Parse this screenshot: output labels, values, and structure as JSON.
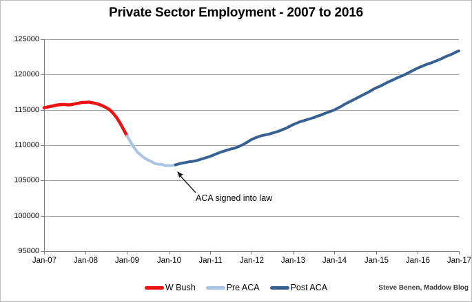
{
  "window": {
    "background": "#ffffff",
    "border_color": "#bdbdbd"
  },
  "chart_data": {
    "type": "line",
    "title": "Private Sector Employment - 2007 to 2016",
    "credit": "Steve Benen, Maddow Blog",
    "annotation": {
      "text": "ACA signed into law",
      "points_to": "Mar-10 trough of the curve"
    },
    "x_axis": {
      "tick_labels": [
        "Jan-07",
        "Jan-08",
        "Jan-09",
        "Jan-10",
        "Jan-11",
        "Jan-12",
        "Jan-13",
        "Jan-14",
        "Jan-15",
        "Jan-16",
        "Jan-17"
      ],
      "months_per_tick": 12,
      "total_months": 120
    },
    "y_axis": {
      "tick_labels": [
        "95000",
        "100000",
        "105000",
        "110000",
        "115000",
        "120000",
        "125000"
      ],
      "min": 95000,
      "max": 125000,
      "grid": true
    },
    "colors": {
      "grid": "#a3a3a3",
      "axis": "#808080",
      "arrow": "#1a1a1a",
      "text": "#000000"
    },
    "legend_position": "bottom",
    "series": [
      {
        "name": "W Bush",
        "color": "#ee1111",
        "start_month": 0,
        "values": [
          115300,
          115400,
          115500,
          115600,
          115700,
          115750,
          115750,
          115700,
          115750,
          115850,
          115950,
          116050,
          116050,
          116100,
          116000,
          115900,
          115750,
          115550,
          115300,
          115000,
          114500,
          113900,
          113100,
          112200,
          111300
        ]
      },
      {
        "name": "Pre ACA",
        "color": "#a9c4e2",
        "start_month": 24,
        "values": [
          111300,
          110500,
          109700,
          109000,
          108600,
          108200,
          107900,
          107700,
          107400,
          107300,
          107300,
          107100,
          107100,
          107100,
          107200
        ]
      },
      {
        "name": "Post ACA",
        "color": "#376192",
        "start_month": 38,
        "values": [
          107200,
          107350,
          107450,
          107550,
          107650,
          107700,
          107800,
          107950,
          108100,
          108250,
          108400,
          108600,
          108800,
          109000,
          109150,
          109300,
          109450,
          109550,
          109750,
          109950,
          110200,
          110500,
          110800,
          111000,
          111200,
          111350,
          111450,
          111550,
          111700,
          111850,
          112000,
          112200,
          112400,
          112650,
          112900,
          113100,
          113300,
          113450,
          113600,
          113750,
          113900,
          114100,
          114250,
          114450,
          114650,
          114800,
          115000,
          115250,
          115500,
          115800,
          116050,
          116300,
          116550,
          116800,
          117050,
          117300,
          117550,
          117850,
          118100,
          118300,
          118550,
          118800,
          119050,
          119250,
          119500,
          119700,
          119900,
          120150,
          120400,
          120650,
          120900,
          121100,
          121300,
          121500,
          121650,
          121850,
          122050,
          122250,
          122500,
          122700,
          122900,
          123150,
          123350
        ]
      }
    ]
  }
}
